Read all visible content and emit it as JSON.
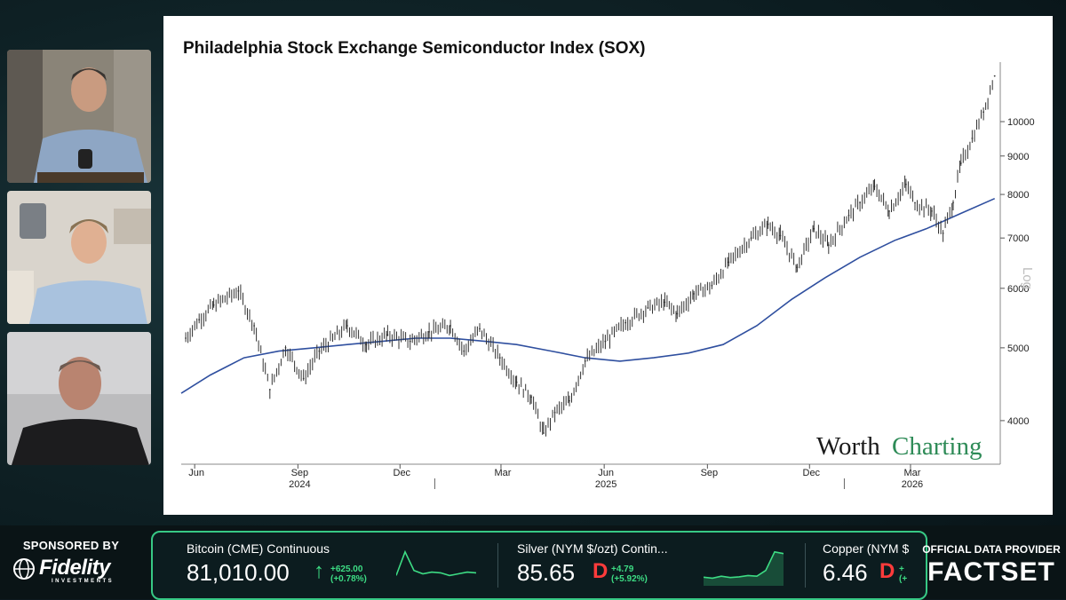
{
  "chart_data": {
    "type": "line",
    "title": "Philadelphia Stock Exchange Semiconductor Index (SOX)",
    "scale": "log",
    "scale_label": "Log",
    "ylim": [
      3500,
      12000
    ],
    "yticks": [
      4000,
      5000,
      6000,
      7000,
      8000,
      9000,
      10000
    ],
    "ytick_labels": [
      "4000",
      "5000",
      "6000",
      "7000",
      "8000",
      "9000",
      "10000"
    ],
    "xlim": [
      "2024-05-20",
      "2026-05-20"
    ],
    "xticks": [
      {
        "date": "2024-06-01",
        "label": "Jun"
      },
      {
        "date": "2024-09-01",
        "label": "Sep"
      },
      {
        "date": "2024-12-01",
        "label": "Dec"
      },
      {
        "date": "2025-03-01",
        "label": "Mar"
      },
      {
        "date": "2025-06-01",
        "label": "Jun"
      },
      {
        "date": "2025-09-01",
        "label": "Sep"
      },
      {
        "date": "2025-12-01",
        "label": "Dec"
      },
      {
        "date": "2026-03-01",
        "label": "Mar"
      }
    ],
    "year_labels": [
      {
        "date": "2024-09-01",
        "label": "2024"
      },
      {
        "date": "2025-06-01",
        "label": "2025"
      },
      {
        "date": "2026-03-01",
        "label": "2026"
      }
    ],
    "year_separators": [
      "2025-01-01",
      "2026-01-01"
    ],
    "grid": false,
    "watermark": {
      "part1": "Worth",
      "part2": "Charting"
    },
    "series": [
      {
        "role": "price",
        "color": "#333333",
        "points": [
          [
            "2024-05-24",
            5150
          ],
          [
            "2024-06-05",
            5450
          ],
          [
            "2024-06-18",
            5700
          ],
          [
            "2024-07-10",
            5950
          ],
          [
            "2024-07-24",
            5350
          ],
          [
            "2024-08-07",
            4400
          ],
          [
            "2024-08-21",
            5000
          ],
          [
            "2024-09-06",
            4550
          ],
          [
            "2024-09-20",
            4950
          ],
          [
            "2024-10-15",
            5350
          ],
          [
            "2024-11-01",
            5050
          ],
          [
            "2024-11-20",
            5200
          ],
          [
            "2024-12-10",
            5100
          ],
          [
            "2024-12-27",
            5250
          ],
          [
            "2025-01-15",
            5350
          ],
          [
            "2025-01-27",
            4950
          ],
          [
            "2025-02-10",
            5300
          ],
          [
            "2025-02-28",
            4850
          ],
          [
            "2025-03-15",
            4500
          ],
          [
            "2025-03-28",
            4300
          ],
          [
            "2025-04-08",
            3850
          ],
          [
            "2025-04-18",
            4100
          ],
          [
            "2025-05-01",
            4250
          ],
          [
            "2025-05-15",
            4800
          ],
          [
            "2025-06-02",
            5100
          ],
          [
            "2025-06-20",
            5400
          ],
          [
            "2025-07-10",
            5650
          ],
          [
            "2025-07-25",
            5750
          ],
          [
            "2025-08-05",
            5550
          ],
          [
            "2025-08-20",
            5900
          ],
          [
            "2025-09-05",
            6050
          ],
          [
            "2025-09-20",
            6500
          ],
          [
            "2025-10-10",
            7000
          ],
          [
            "2025-10-25",
            7300
          ],
          [
            "2025-11-05",
            7050
          ],
          [
            "2025-11-20",
            6400
          ],
          [
            "2025-12-05",
            7200
          ],
          [
            "2025-12-18",
            6850
          ],
          [
            "2026-01-05",
            7500
          ],
          [
            "2026-01-15",
            7800
          ],
          [
            "2026-01-28",
            8200
          ],
          [
            "2026-02-10",
            7600
          ],
          [
            "2026-02-25",
            8250
          ],
          [
            "2026-03-05",
            7800
          ],
          [
            "2026-03-20",
            7600
          ],
          [
            "2026-03-30",
            7100
          ],
          [
            "2026-04-08",
            7800
          ],
          [
            "2026-04-15",
            8800
          ],
          [
            "2026-04-25",
            9500
          ],
          [
            "2026-05-05",
            10300
          ],
          [
            "2026-05-15",
            11500
          ]
        ]
      },
      {
        "role": "moving-average",
        "color": "#2f4f9f",
        "points": [
          [
            "2024-05-20",
            4350
          ],
          [
            "2024-06-15",
            4600
          ],
          [
            "2024-07-15",
            4850
          ],
          [
            "2024-08-15",
            4950
          ],
          [
            "2024-09-15",
            5000
          ],
          [
            "2024-10-15",
            5050
          ],
          [
            "2024-11-15",
            5100
          ],
          [
            "2024-12-15",
            5150
          ],
          [
            "2025-01-15",
            5150
          ],
          [
            "2025-02-15",
            5100
          ],
          [
            "2025-03-15",
            5050
          ],
          [
            "2025-04-15",
            4950
          ],
          [
            "2025-05-15",
            4850
          ],
          [
            "2025-06-15",
            4800
          ],
          [
            "2025-07-15",
            4850
          ],
          [
            "2025-08-15",
            4920
          ],
          [
            "2025-09-15",
            5050
          ],
          [
            "2025-10-15",
            5350
          ],
          [
            "2025-11-15",
            5800
          ],
          [
            "2025-12-15",
            6200
          ],
          [
            "2026-01-15",
            6600
          ],
          [
            "2026-02-15",
            6950
          ],
          [
            "2026-03-15",
            7200
          ],
          [
            "2026-04-15",
            7550
          ],
          [
            "2026-05-15",
            7900
          ]
        ]
      }
    ]
  },
  "ticker": {
    "sponsor_label": "SPONSORED BY",
    "sponsor_name": "Fidelity",
    "sponsor_sub": "INVESTMENTS",
    "provider_label": "OFFICIAL DATA PROVIDER",
    "provider_name": "FACTSET",
    "items": [
      {
        "name": "Bitcoin (CME) Continuous",
        "price": "81,010.00",
        "arrow": "↑",
        "change": "+625.00",
        "pct": "(+0.78%)",
        "color": "#3ddc84",
        "spark": [
          0.2,
          0.9,
          0.35,
          0.25,
          0.3,
          0.28,
          0.2,
          0.25,
          0.3,
          0.28
        ]
      },
      {
        "name": "Silver (NYM $/ozt) Contin...",
        "price": "85.65",
        "arrow": "D",
        "change": "+4.79",
        "pct": "(+5.92%)",
        "color": "#ff3b3b",
        "spark": [
          0.15,
          0.12,
          0.18,
          0.14,
          0.16,
          0.2,
          0.18,
          0.35,
          0.9,
          0.85
        ]
      },
      {
        "name": "Copper (NYM $",
        "price": "6.46",
        "arrow": "D",
        "change": "+",
        "pct": "(+",
        "color": "#ff3b3b",
        "spark": []
      }
    ]
  }
}
